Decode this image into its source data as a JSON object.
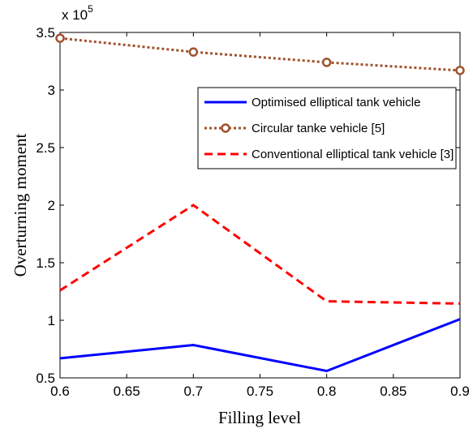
{
  "chart_data": {
    "type": "line",
    "xlabel": "Filling level",
    "ylabel": "Overturning moment",
    "y_multiplier": {
      "base": "x 10",
      "exponent": "5"
    },
    "xlim": [
      0.6,
      0.9
    ],
    "ylim": [
      0.5,
      3.5
    ],
    "x_ticks": [
      "0.6",
      "0.65",
      "0.7",
      "0.75",
      "0.8",
      "0.85",
      "0.9"
    ],
    "y_ticks": [
      "0.5",
      "1",
      "1.5",
      "2",
      "2.5",
      "3",
      "3.5"
    ],
    "x": [
      0.6,
      0.7,
      0.8,
      0.9
    ],
    "legend_position": "top-right",
    "grid": false,
    "series": [
      {
        "name": "Optimised elliptical tank vehicle",
        "values": [
          0.67,
          0.785,
          0.56,
          1.01
        ],
        "color": "#0000ff",
        "style": "solid",
        "marker": "none"
      },
      {
        "name": "Circular tanke vehicle [5]",
        "values": [
          3.45,
          3.33,
          3.24,
          3.17
        ],
        "color": "#a0522d",
        "style": "dotted",
        "marker": "circle"
      },
      {
        "name": "Conventional elliptical tank vehicle [3]",
        "values": [
          1.26,
          2.0,
          1.165,
          1.145
        ],
        "color": "#ff0000",
        "style": "dashed",
        "marker": "none"
      }
    ]
  }
}
